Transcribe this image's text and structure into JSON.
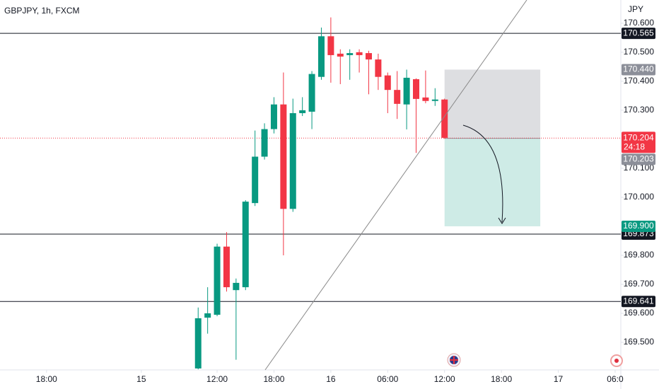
{
  "chart_data": {
    "type": "candlestick",
    "title": "GBPJPY, 1h, FXCM",
    "y_axis_label": "JPY",
    "x": [
      34,
      35,
      36,
      37,
      38,
      39,
      40,
      41,
      42,
      43,
      44,
      45,
      46,
      47,
      48,
      49,
      50,
      51,
      52,
      53,
      54,
      55,
      56,
      57,
      58,
      59,
      60
    ],
    "open": [
      169.41,
      169.585,
      169.595,
      169.83,
      169.68,
      169.69,
      169.98,
      170.14,
      170.235,
      170.32,
      169.96,
      170.29,
      170.295,
      170.415,
      170.555,
      170.495,
      170.49,
      170.5,
      170.497,
      170.475,
      170.42,
      170.37,
      170.32,
      170.407,
      170.344,
      170.332,
      170.337
    ],
    "high": [
      169.62,
      169.69,
      169.84,
      169.88,
      169.72,
      169.99,
      170.23,
      170.255,
      170.345,
      170.43,
      170.34,
      170.345,
      170.435,
      170.585,
      170.62,
      170.51,
      170.51,
      170.51,
      170.505,
      170.495,
      170.43,
      170.435,
      170.44,
      170.41,
      170.437,
      170.376,
      170.34
    ],
    "low": [
      169.407,
      169.53,
      169.59,
      169.675,
      169.44,
      169.68,
      169.97,
      170.13,
      170.22,
      169.8,
      169.95,
      170.28,
      170.235,
      170.405,
      170.395,
      170.39,
      170.405,
      170.43,
      170.355,
      170.37,
      170.29,
      170.27,
      170.234,
      170.153,
      170.324,
      170.315,
      170.202
    ],
    "close": [
      169.583,
      169.6,
      169.83,
      169.69,
      169.705,
      169.985,
      170.14,
      170.235,
      170.32,
      169.96,
      170.29,
      170.3,
      170.425,
      170.555,
      170.49,
      170.485,
      170.497,
      170.49,
      170.475,
      170.415,
      170.37,
      170.322,
      170.412,
      170.339,
      170.332,
      170.337,
      170.205
    ],
    "up_color": "#089981",
    "down_color": "#f23645",
    "xlim": [
      13.09,
      78.6
    ],
    "xticks": [
      {
        "value": 18,
        "label": "18:00"
      },
      {
        "value": 28,
        "label": "15"
      },
      {
        "value": 36,
        "label": "12:00"
      },
      {
        "value": 42,
        "label": "18:00"
      },
      {
        "value": 48,
        "label": "16"
      },
      {
        "value": 54,
        "label": "06:00"
      },
      {
        "value": 60,
        "label": "12:00"
      },
      {
        "value": 66,
        "label": "18:00"
      },
      {
        "value": 72,
        "label": "17"
      },
      {
        "value": 78,
        "label": "06:0"
      }
    ],
    "ylim": [
      169.405,
      170.68
    ],
    "yticks": [
      {
        "value": 170.6,
        "label": "170.600"
      },
      {
        "value": 170.5,
        "label": "170.500"
      },
      {
        "value": 170.4,
        "label": "170.400"
      },
      {
        "value": 170.3,
        "label": "170.300"
      },
      {
        "value": 170.1,
        "label": "170.100"
      },
      {
        "value": 170,
        "label": "170.000"
      },
      {
        "value": 169.8,
        "label": "169.800"
      },
      {
        "value": 169.7,
        "label": "169.700"
      },
      {
        "value": 169.6,
        "label": "169.600"
      },
      {
        "value": 169.5,
        "label": "169.500"
      }
    ],
    "grid": false,
    "levels": [
      170.565,
      169.873,
      169.641
    ],
    "last_price": 170.204,
    "countdown": "24:18",
    "position": {
      "stop": {
        "value": 170.44,
        "label": "170.440"
      },
      "entry": 170.203,
      "target": {
        "value": 169.9,
        "label": "169.900"
      },
      "start": 60,
      "end": 70.1
    }
  }
}
